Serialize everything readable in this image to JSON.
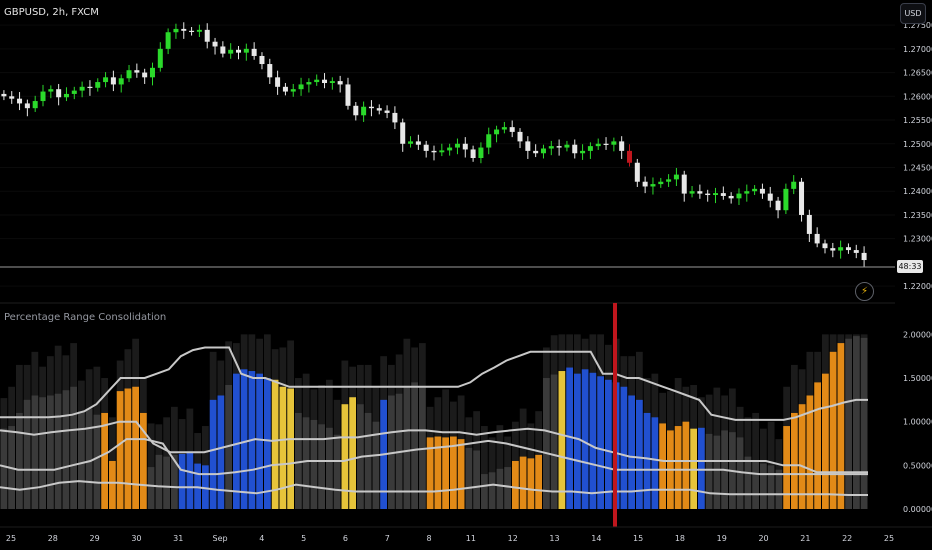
{
  "header": {
    "symbol_title": "GBPUSD, 2h, FXCM",
    "currency_button": "USD"
  },
  "price_pane": {
    "y_ticks": [
      "1.27500",
      "1.27000",
      "1.26500",
      "1.26000",
      "1.25500",
      "1.25000",
      "1.24500",
      "1.24000",
      "1.23500",
      "1.23000",
      "1.22000"
    ],
    "y_tick_values": [
      1.275,
      1.27,
      1.265,
      1.26,
      1.255,
      1.25,
      1.245,
      1.24,
      1.235,
      1.23,
      1.22
    ],
    "countdown": "48:33"
  },
  "indicator_pane": {
    "title": "Percentage Range Consolidation",
    "y_ticks": [
      "2.00000",
      "1.50000",
      "1.00000",
      "0.50000",
      "0.00000"
    ],
    "y_tick_values": [
      2.0,
      1.5,
      1.0,
      0.5,
      0.0
    ]
  },
  "x_axis": {
    "labels": [
      "25",
      "28",
      "29",
      "30",
      "31",
      "Sep",
      "4",
      "5",
      "6",
      "7",
      "8",
      "11",
      "12",
      "13",
      "14",
      "15",
      "18",
      "19",
      "20",
      "21",
      "22",
      "25"
    ]
  },
  "colors": {
    "bull": "#2bd92b",
    "bear": "#e8e8e8",
    "marker_red": "#c0161d",
    "blue": "#2150d0",
    "orange": "#e28a17",
    "yellow": "#e6c43a",
    "gray_bar": "#3a3a3a",
    "line": "#c8c8c8"
  },
  "chart_data": {
    "type": "candlestick",
    "title": "GBPUSD, 2h, FXCM",
    "ylim": [
      1.2175,
      1.2765
    ],
    "close_series": [
      1.26,
      1.2595,
      1.2585,
      1.2575,
      1.259,
      1.261,
      1.2615,
      1.2598,
      1.2605,
      1.2612,
      1.262,
      1.2618,
      1.263,
      1.264,
      1.2625,
      1.2638,
      1.2655,
      1.265,
      1.264,
      1.266,
      1.27,
      1.2735,
      1.2742,
      1.2738,
      1.2736,
      1.274,
      1.2715,
      1.2705,
      1.269,
      1.2698,
      1.2692,
      1.27,
      1.2685,
      1.2668,
      1.264,
      1.262,
      1.261,
      1.2615,
      1.2625,
      1.263,
      1.2635,
      1.2628,
      1.2632,
      1.2625,
      1.258,
      1.256,
      1.2578,
      1.2575,
      1.257,
      1.2565,
      1.2545,
      1.25,
      1.2505,
      1.2498,
      1.2485,
      1.2482,
      1.2486,
      1.2492,
      1.25,
      1.2488,
      1.247,
      1.2492,
      1.252,
      1.253,
      1.2535,
      1.2525,
      1.2505,
      1.2485,
      1.248,
      1.249,
      1.2495,
      1.2492,
      1.2498,
      1.248,
      1.2485,
      1.2495,
      1.25,
      1.2498,
      1.2505,
      1.2485,
      1.246,
      1.242,
      1.241,
      1.2415,
      1.242,
      1.2425,
      1.2435,
      1.2395,
      1.24,
      1.2395,
      1.2392,
      1.2396,
      1.239,
      1.2385,
      1.2395,
      1.24,
      1.2405,
      1.2395,
      1.238,
      1.236,
      1.2405,
      1.242,
      1.235,
      1.231,
      1.229,
      1.228,
      1.2275,
      1.2282,
      1.2276,
      1.227,
      1.2255
    ],
    "marker_index": 80,
    "indicator": {
      "name": "Percentage Range Consolidation",
      "ylim": [
        0,
        2.05
      ],
      "bars": [
        0.92,
        0.95,
        1.1,
        1.25,
        1.3,
        1.28,
        1.3,
        1.32,
        1.36,
        1.4,
        1.12,
        1.15,
        1.08,
        1.1,
        0.55,
        1.35,
        1.38,
        1.4,
        1.1,
        0.48,
        0.62,
        0.6,
        0.62,
        0.63,
        0.65,
        0.52,
        0.5,
        1.25,
        1.3,
        1.42,
        1.55,
        1.6,
        1.58,
        1.55,
        1.5,
        1.48,
        1.4,
        1.38,
        1.1,
        1.05,
        1.02,
        0.97,
        0.93,
        0.85,
        1.2,
        1.28,
        1.2,
        1.1,
        1.0,
        1.25,
        1.3,
        1.32,
        1.4,
        1.45,
        1.4,
        0.82,
        0.83,
        0.82,
        0.83,
        0.8,
        0.7,
        0.67,
        0.4,
        0.42,
        0.46,
        0.48,
        0.55,
        0.6,
        0.58,
        0.62,
        1.5,
        1.54,
        1.58,
        1.62,
        1.55,
        1.6,
        1.56,
        1.52,
        1.48,
        1.45,
        1.4,
        1.3,
        1.25,
        1.1,
        1.05,
        0.98,
        0.9,
        0.95,
        1.0,
        0.92,
        0.93,
        0.86,
        0.84,
        0.9,
        0.88,
        0.82,
        0.6,
        0.55,
        0.52,
        0.5,
        0.45,
        0.95,
        1.1,
        1.2,
        1.3,
        1.45,
        1.55,
        1.8,
        1.9,
        1.95,
        1.98,
        1.96
      ],
      "bar_colors": [
        "g",
        "g",
        "g",
        "g",
        "g",
        "g",
        "g",
        "g",
        "g",
        "g",
        "g",
        "g",
        "g",
        "o",
        "o",
        "o",
        "o",
        "o",
        "o",
        "g",
        "g",
        "g",
        "g",
        "b",
        "b",
        "b",
        "b",
        "b",
        "b",
        "g",
        "b",
        "b",
        "b",
        "b",
        "b",
        "y",
        "y",
        "y",
        "g",
        "g",
        "g",
        "g",
        "g",
        "g",
        "y",
        "y",
        "g",
        "g",
        "g",
        "b",
        "g",
        "g",
        "g",
        "g",
        "g",
        "o",
        "o",
        "o",
        "o",
        "o",
        "g",
        "g",
        "g",
        "g",
        "g",
        "g",
        "o",
        "o",
        "o",
        "o",
        "g",
        "g",
        "y",
        "b",
        "b",
        "b",
        "b",
        "b",
        "b",
        "b",
        "b",
        "b",
        "b",
        "b",
        "b",
        "o",
        "o",
        "o",
        "o",
        "y",
        "b",
        "g",
        "g",
        "g",
        "g",
        "g",
        "g",
        "g",
        "g",
        "g",
        "g",
        "o",
        "o",
        "o",
        "o",
        "o",
        "o",
        "o",
        "o",
        "g",
        "g",
        "g",
        "g",
        "g"
      ],
      "line_upper": [
        1.05,
        1.05,
        1.05,
        1.05,
        1.05,
        1.06,
        1.08,
        1.12,
        1.2,
        1.35,
        1.5,
        1.5,
        1.5,
        1.55,
        1.6,
        1.75,
        1.82,
        1.85,
        1.85,
        1.85,
        1.55,
        1.5,
        1.5,
        1.45,
        1.4,
        1.4,
        1.4,
        1.4,
        1.4,
        1.4,
        1.4,
        1.4,
        1.4,
        1.4,
        1.4,
        1.4,
        1.4,
        1.4,
        1.4,
        1.45,
        1.55,
        1.62,
        1.7,
        1.75,
        1.8,
        1.8,
        1.8,
        1.8,
        1.8,
        1.8,
        1.55,
        1.55,
        1.5,
        1.5,
        1.45,
        1.4,
        1.35,
        1.3,
        1.25,
        1.08,
        1.05,
        1.02,
        1.02,
        1.02,
        1.02,
        1.02,
        1.05,
        1.1,
        1.15,
        1.18,
        1.22,
        1.25,
        1.25
      ],
      "line_mid1": [
        0.9,
        0.88,
        0.85,
        0.88,
        0.9,
        0.92,
        0.95,
        1.0,
        1.0,
        0.75,
        0.65,
        0.65,
        0.65,
        0.7,
        0.75,
        0.8,
        0.78,
        0.8,
        0.8,
        0.8,
        0.82,
        0.82,
        0.85,
        0.88,
        0.9,
        0.9,
        0.88,
        0.88,
        0.85,
        0.88,
        0.9,
        0.92,
        0.9,
        0.85,
        0.8,
        0.7,
        0.65,
        0.6,
        0.58,
        0.55,
        0.55,
        0.55,
        0.55,
        0.55,
        0.55,
        0.55,
        0.5,
        0.5,
        0.42,
        0.42,
        0.42,
        0.42
      ],
      "line_mid2": [
        0.5,
        0.45,
        0.45,
        0.45,
        0.5,
        0.55,
        0.65,
        0.8,
        0.8,
        0.75,
        0.45,
        0.4,
        0.4,
        0.42,
        0.45,
        0.5,
        0.52,
        0.55,
        0.55,
        0.55,
        0.6,
        0.62,
        0.65,
        0.68,
        0.7,
        0.72,
        0.75,
        0.78,
        0.75,
        0.7,
        0.65,
        0.6,
        0.55,
        0.5,
        0.45,
        0.45,
        0.45,
        0.45,
        0.45,
        0.45,
        0.45,
        0.42,
        0.4,
        0.4,
        0.4,
        0.4,
        0.4,
        0.4,
        0.4
      ],
      "line_lower": [
        0.25,
        0.22,
        0.25,
        0.3,
        0.32,
        0.3,
        0.3,
        0.28,
        0.26,
        0.25,
        0.25,
        0.22,
        0.2,
        0.18,
        0.22,
        0.28,
        0.25,
        0.22,
        0.2,
        0.2,
        0.2,
        0.2,
        0.2,
        0.22,
        0.25,
        0.28,
        0.25,
        0.22,
        0.2,
        0.2,
        0.18,
        0.2,
        0.2,
        0.22,
        0.22,
        0.22,
        0.18,
        0.17,
        0.17,
        0.17,
        0.17,
        0.17,
        0.17,
        0.16,
        0.16
      ]
    }
  }
}
